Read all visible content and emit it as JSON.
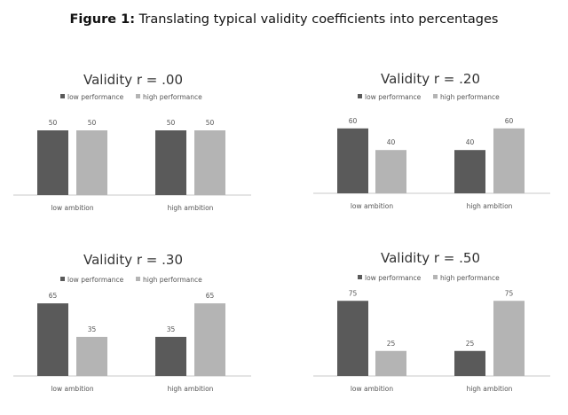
{
  "figure": {
    "label": "Figure 1:",
    "title": "Translating typical validity coefficients into percentages"
  },
  "colors": {
    "low_performance": "#5a5a5a",
    "high_performance": "#b4b4b4",
    "axis": "#c8c8c8"
  },
  "chart_data": [
    {
      "type": "bar",
      "title": "Validity r = .00",
      "categories": [
        "low ambition",
        "high ambition"
      ],
      "legend": "top",
      "series": [
        {
          "name": "low performance",
          "values": [
            50,
            50
          ]
        },
        {
          "name": "high performance",
          "values": [
            50,
            50
          ]
        }
      ]
    },
    {
      "type": "bar",
      "title": "Validity r = .20",
      "categories": [
        "low ambition",
        "high ambition"
      ],
      "legend": "top",
      "series": [
        {
          "name": "low performance",
          "values": [
            60,
            40
          ]
        },
        {
          "name": "high performance",
          "values": [
            40,
            60
          ]
        }
      ]
    },
    {
      "type": "bar",
      "title": "Validity r = .30",
      "categories": [
        "low ambition",
        "high ambition"
      ],
      "legend": "top",
      "series": [
        {
          "name": "low performance",
          "values": [
            65,
            35
          ]
        },
        {
          "name": "high performance",
          "values": [
            35,
            65
          ]
        }
      ]
    },
    {
      "type": "bar",
      "title": "Validity r = .50",
      "categories": [
        "low ambition",
        "high ambition"
      ],
      "legend": "top",
      "series": [
        {
          "name": "low performance",
          "values": [
            75,
            25
          ]
        },
        {
          "name": "high performance",
          "values": [
            25,
            75
          ]
        }
      ]
    }
  ]
}
